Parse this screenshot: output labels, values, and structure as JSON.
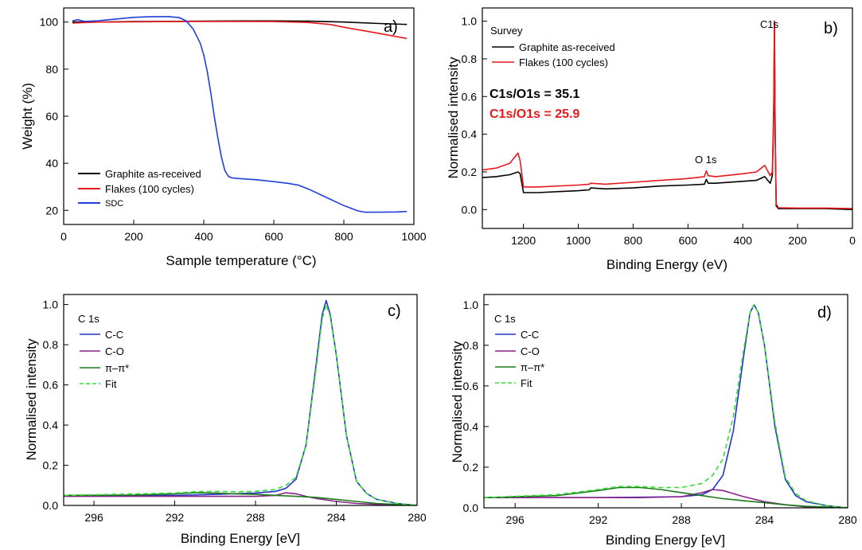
{
  "chart_data": [
    {
      "type": "line",
      "panel_label": "a)",
      "xlabel": "Sample temperature (°C)",
      "ylabel": "Weight (%)",
      "xlim": [
        0,
        1000
      ],
      "ylim": [
        14,
        106
      ],
      "xticks": [
        0,
        200,
        400,
        600,
        800,
        1000
      ],
      "yticks": [
        20,
        40,
        60,
        80,
        100
      ],
      "legend_position": "bottom-left",
      "series": [
        {
          "name": "Graphite as-received",
          "color": "#000000",
          "x": [
            25,
            100,
            200,
            300,
            400,
            500,
            600,
            700,
            800,
            900,
            980
          ],
          "y": [
            100,
            100,
            100.2,
            100.3,
            100.4,
            100.5,
            100.5,
            100.4,
            100,
            99.4,
            99
          ]
        },
        {
          "name": "Flakes (100 cycles)",
          "color": "#e8191c",
          "x": [
            25,
            100,
            200,
            300,
            400,
            500,
            600,
            700,
            760,
            800,
            900,
            980
          ],
          "y": [
            99.6,
            100,
            100.1,
            100.2,
            100.3,
            100.3,
            100.2,
            99.8,
            99,
            97.8,
            95.2,
            93
          ]
        },
        {
          "name": "SDC",
          "color": "#1f3fd8",
          "x": [
            25,
            40,
            60,
            100,
            150,
            200,
            250,
            300,
            330,
            350,
            370,
            390,
            400,
            410,
            420,
            430,
            440,
            450,
            460,
            470,
            480,
            500,
            550,
            600,
            640,
            670,
            700,
            750,
            800,
            840,
            860,
            900,
            950,
            980
          ],
          "y": [
            100.5,
            101,
            100.3,
            100.6,
            101.3,
            102,
            102.3,
            102.3,
            101.9,
            100.5,
            97,
            91,
            86,
            79,
            70,
            60,
            51,
            43,
            37,
            34.5,
            33.8,
            33.5,
            33,
            32.2,
            31.5,
            30.7,
            29,
            25.5,
            22,
            19.8,
            19.2,
            19.2,
            19.3,
            19.5
          ]
        }
      ]
    },
    {
      "type": "line",
      "panel_label": "b)",
      "xlabel": "Binding Energy (eV)",
      "ylabel": "Normalised intensity",
      "xlim": [
        1350,
        0
      ],
      "ylim": [
        -0.1,
        1.07
      ],
      "xticks": [
        1200,
        1000,
        800,
        600,
        400,
        200,
        0
      ],
      "yticks": [
        0.0,
        0.2,
        0.4,
        0.6,
        0.8,
        1.0
      ],
      "legend_title": "Survey",
      "legend_position": "top-left",
      "annotations": [
        "O 1s",
        "C1s"
      ],
      "ratio_texts": [
        {
          "text": "C1s/O1s = 35.1",
          "color": "#000000"
        },
        {
          "text": "C1s/O1s = 25.9",
          "color": "#e8191c"
        }
      ],
      "series": [
        {
          "name": "Graphite as-received",
          "color": "#000000",
          "x": [
            1350,
            1300,
            1250,
            1220,
            1212,
            1200,
            1150,
            1000,
            960,
            955,
            900,
            800,
            700,
            600,
            540,
            533,
            526,
            500,
            400,
            350,
            320,
            300,
            292,
            287,
            284.5,
            282,
            278,
            270,
            200,
            100,
            0
          ],
          "y": [
            0.17,
            0.175,
            0.185,
            0.2,
            0.19,
            0.09,
            0.09,
            0.1,
            0.105,
            0.115,
            0.11,
            0.115,
            0.125,
            0.13,
            0.135,
            0.16,
            0.14,
            0.14,
            0.15,
            0.155,
            0.175,
            0.14,
            0.18,
            0.5,
            1.0,
            0.4,
            0.02,
            0.005,
            0.005,
            0.005,
            0.0
          ]
        },
        {
          "name": "Flakes (100 cycles)",
          "color": "#e8191c",
          "x": [
            1350,
            1300,
            1250,
            1220,
            1212,
            1200,
            1150,
            1000,
            960,
            955,
            900,
            800,
            700,
            600,
            540,
            533,
            526,
            500,
            400,
            350,
            320,
            300,
            292,
            287,
            284.5,
            282,
            278,
            270,
            200,
            100,
            0
          ],
          "y": [
            0.21,
            0.22,
            0.245,
            0.3,
            0.26,
            0.12,
            0.12,
            0.13,
            0.135,
            0.14,
            0.135,
            0.145,
            0.155,
            0.165,
            0.175,
            0.205,
            0.18,
            0.175,
            0.19,
            0.2,
            0.235,
            0.18,
            0.2,
            0.55,
            1.0,
            0.42,
            0.03,
            0.01,
            0.008,
            0.008,
            0.005
          ]
        }
      ]
    },
    {
      "type": "line",
      "panel_label": "c)",
      "xlabel": "Binding Energy [eV]",
      "ylabel": "Normalised intensity",
      "xlim": [
        297.5,
        280
      ],
      "ylim": [
        0,
        1.05
      ],
      "xticks": [
        296,
        292,
        288,
        284,
        280
      ],
      "yticks": [
        0.0,
        0.2,
        0.4,
        0.6,
        0.8,
        1.0
      ],
      "legend_title": "C 1s",
      "legend_position": "top-left",
      "series": [
        {
          "name": "C-C",
          "color": "#2233cc",
          "style": "solid",
          "x": [
            297.5,
            292,
            290,
            288,
            287,
            286.5,
            286,
            285.5,
            285,
            284.7,
            284.5,
            284.3,
            284,
            283.5,
            283,
            282.5,
            282,
            281,
            280
          ],
          "y": [
            0.05,
            0.05,
            0.055,
            0.062,
            0.07,
            0.085,
            0.13,
            0.3,
            0.7,
            0.95,
            1.02,
            0.95,
            0.75,
            0.35,
            0.12,
            0.06,
            0.03,
            0.01,
            0.0
          ]
        },
        {
          "name": "C-O",
          "color": "#882288",
          "style": "solid",
          "x": [
            297.5,
            292,
            290,
            288,
            287,
            286.5,
            286,
            285.5,
            285,
            284,
            283,
            282,
            280
          ],
          "y": [
            0.045,
            0.045,
            0.045,
            0.045,
            0.05,
            0.063,
            0.058,
            0.045,
            0.035,
            0.02,
            0.01,
            0.005,
            0.0
          ]
        },
        {
          "name": "π–π*",
          "color": "#1a7a1a",
          "style": "solid",
          "x": [
            297.5,
            294,
            292,
            291,
            290,
            289,
            288,
            287,
            286,
            285,
            284,
            283,
            282,
            280
          ],
          "y": [
            0.05,
            0.052,
            0.058,
            0.063,
            0.062,
            0.058,
            0.055,
            0.05,
            0.045,
            0.04,
            0.03,
            0.02,
            0.01,
            0.0
          ]
        },
        {
          "name": "Fit",
          "color": "#33dd33",
          "style": "dashed",
          "x": [
            297.5,
            292,
            291,
            290,
            289,
            288,
            287,
            286.5,
            286,
            285.5,
            285,
            284.7,
            284.5,
            284.3,
            284,
            283.5,
            283,
            282.5,
            282,
            281,
            280
          ],
          "y": [
            0.05,
            0.062,
            0.068,
            0.07,
            0.068,
            0.07,
            0.08,
            0.1,
            0.14,
            0.3,
            0.68,
            0.93,
            1.0,
            0.94,
            0.75,
            0.35,
            0.12,
            0.06,
            0.03,
            0.01,
            0.0
          ]
        }
      ]
    },
    {
      "type": "line",
      "panel_label": "d)",
      "xlabel": "Binding Energy [eV]",
      "ylabel": "Normalised intensity",
      "xlim": [
        297.5,
        280
      ],
      "ylim": [
        0,
        1.05
      ],
      "xticks": [
        296,
        292,
        288,
        284,
        280
      ],
      "yticks": [
        0.0,
        0.2,
        0.4,
        0.6,
        0.8,
        1.0
      ],
      "legend_title": "C 1s",
      "legend_position": "top-left",
      "series": [
        {
          "name": "C-C",
          "color": "#2233cc",
          "style": "solid",
          "x": [
            297.5,
            292,
            290,
            288,
            287,
            286.5,
            286,
            285.5,
            285,
            284.7,
            284.5,
            284.3,
            284,
            283.5,
            283,
            282.5,
            282,
            281,
            280
          ],
          "y": [
            0.05,
            0.05,
            0.052,
            0.055,
            0.065,
            0.09,
            0.16,
            0.38,
            0.75,
            0.96,
            1.0,
            0.96,
            0.8,
            0.4,
            0.14,
            0.06,
            0.03,
            0.01,
            0.0
          ]
        },
        {
          "name": "C-O",
          "color": "#882288",
          "style": "solid",
          "x": [
            297.5,
            292,
            290,
            288,
            287,
            286.5,
            286,
            285.5,
            285,
            284,
            283,
            282,
            280
          ],
          "y": [
            0.05,
            0.05,
            0.05,
            0.055,
            0.075,
            0.09,
            0.085,
            0.07,
            0.055,
            0.03,
            0.015,
            0.005,
            0.0
          ]
        },
        {
          "name": "π–π*",
          "color": "#1a7a1a",
          "style": "solid",
          "x": [
            297.5,
            294,
            292,
            291,
            290,
            289,
            288,
            287,
            286,
            285,
            284,
            283,
            282,
            280
          ],
          "y": [
            0.05,
            0.06,
            0.085,
            0.1,
            0.1,
            0.09,
            0.075,
            0.06,
            0.045,
            0.035,
            0.025,
            0.015,
            0.008,
            0.0
          ]
        },
        {
          "name": "Fit",
          "color": "#33dd33",
          "style": "dashed",
          "x": [
            297.5,
            294,
            292,
            291,
            290,
            289,
            288,
            287,
            286.5,
            286,
            285.5,
            285,
            284.7,
            284.5,
            284.3,
            284,
            283.5,
            283,
            282.5,
            282,
            281,
            280
          ],
          "y": [
            0.05,
            0.065,
            0.09,
            0.105,
            0.105,
            0.1,
            0.1,
            0.12,
            0.16,
            0.24,
            0.45,
            0.78,
            0.96,
            1.0,
            0.96,
            0.8,
            0.42,
            0.15,
            0.07,
            0.035,
            0.01,
            0.0
          ]
        }
      ]
    }
  ]
}
